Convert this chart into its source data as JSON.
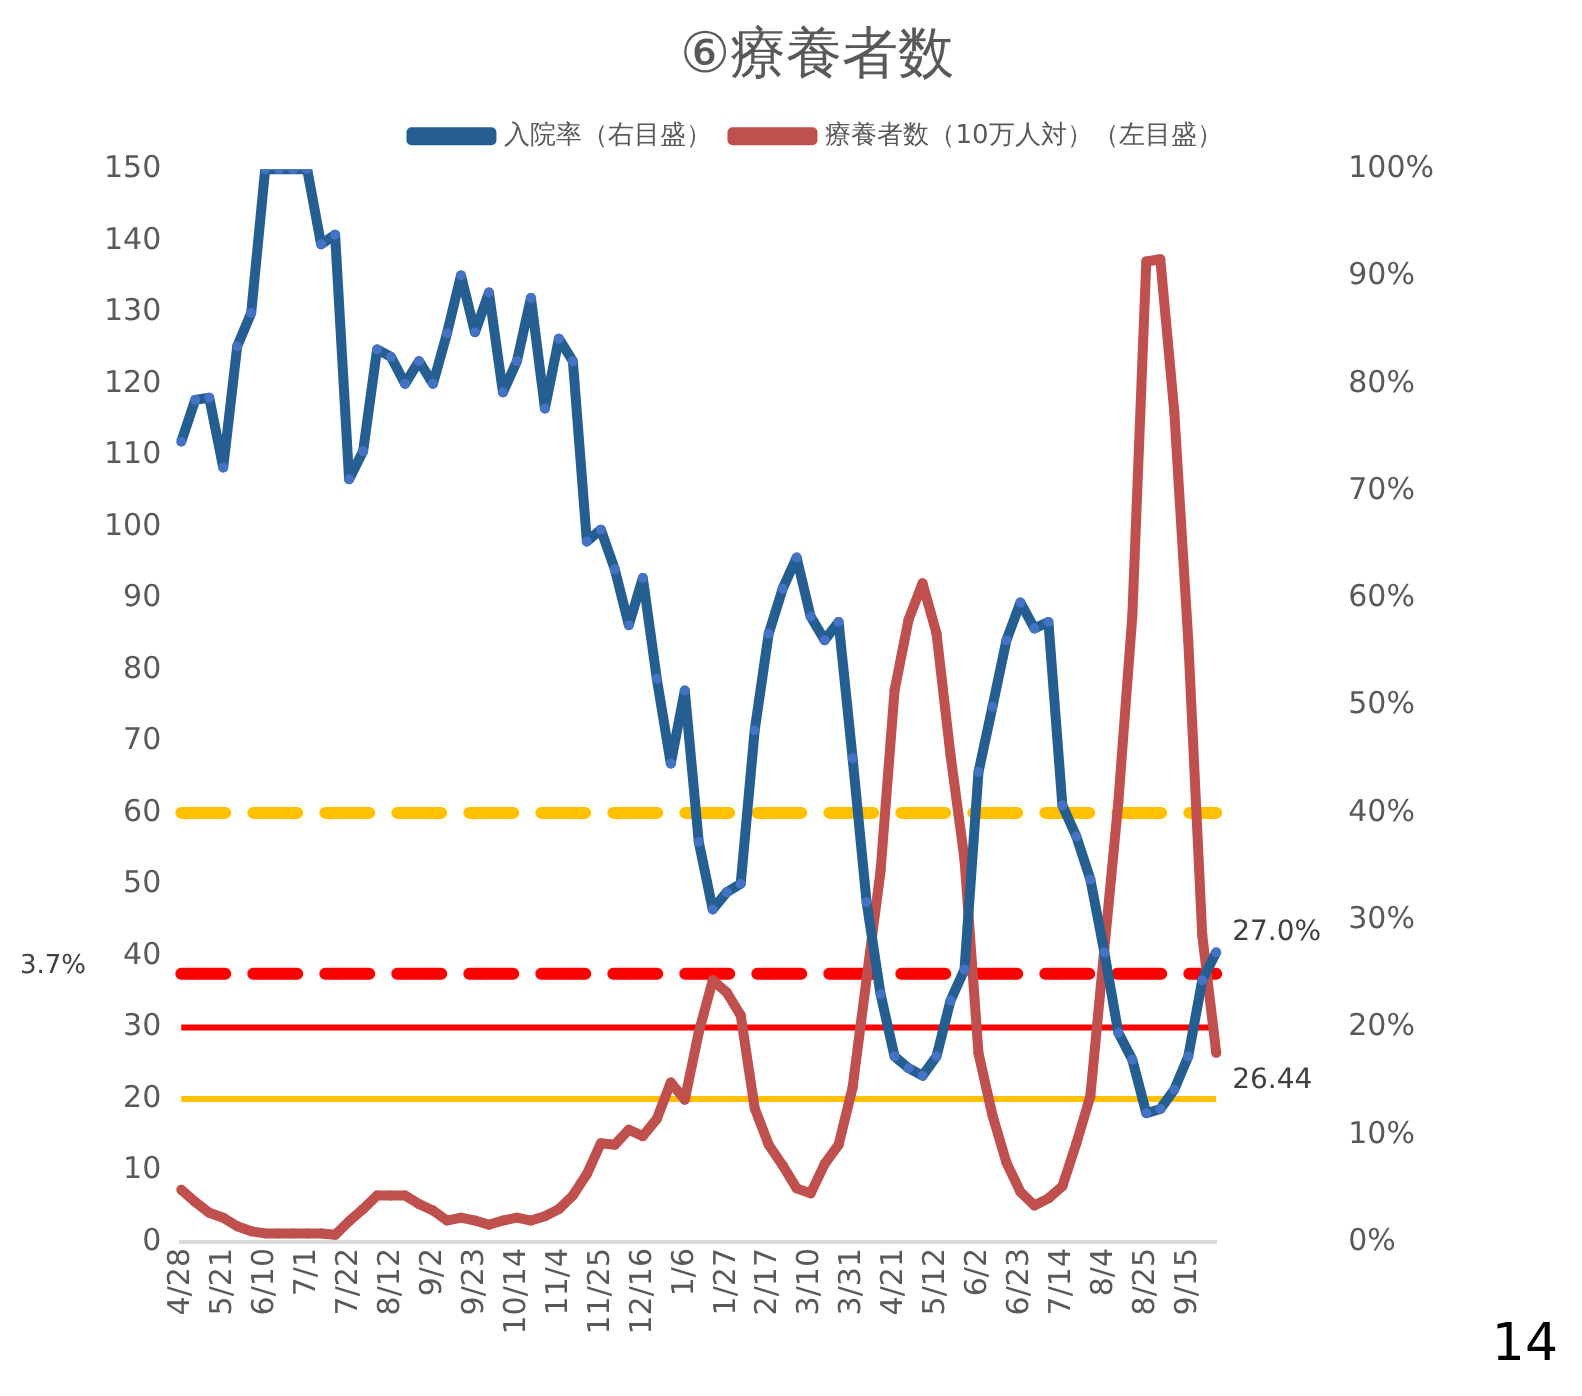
{
  "chart_data": {
    "type": "line",
    "title": "⑥療養者数",
    "categories": [
      "4/28",
      null,
      null,
      "5/21",
      null,
      null,
      "6/10",
      null,
      null,
      "7/1",
      null,
      null,
      "7/22",
      null,
      null,
      "8/12",
      null,
      null,
      "9/2",
      null,
      null,
      "9/23",
      null,
      null,
      "10/14",
      null,
      null,
      "11/4",
      null,
      null,
      "11/25",
      null,
      null,
      "12/16",
      null,
      null,
      "1/6",
      null,
      null,
      "1/27",
      null,
      null,
      "2/17",
      null,
      null,
      "3/10",
      null,
      null,
      "3/31",
      null,
      null,
      "4/21",
      null,
      null,
      "5/12",
      null,
      null,
      "6/2",
      null,
      null,
      "6/23",
      null,
      null,
      "7/14",
      null,
      null,
      "8/4",
      null,
      null,
      "8/25",
      null,
      null,
      "9/15",
      null,
      null
    ],
    "series": [
      {
        "name": "入院率（右目盛）",
        "color": "#255e91",
        "axis": "y2",
        "values": [
          74.6,
          78.5,
          78.7,
          72.2,
          83.5,
          86.6,
          100,
          100,
          100,
          100,
          93.0,
          93.9,
          71.1,
          73.7,
          83.2,
          82.5,
          80.0,
          82.1,
          80.0,
          84.7,
          90.1,
          84.8,
          88.5,
          79.2,
          82.1,
          88.0,
          77.7,
          84.2,
          82.1,
          65.3,
          66.4,
          62.7,
          57.5,
          61.9,
          52.5,
          44.6,
          51.4,
          37.3,
          31.0,
          32.6,
          33.4,
          47.7,
          56.7,
          60.9,
          63.8,
          58.3,
          56.1,
          57.8,
          45.1,
          31.7,
          23.1,
          17.3,
          16.2,
          15.5,
          17.3,
          22.5,
          25.4,
          43.8,
          49.9,
          56.1,
          59.6,
          57.2,
          57.8,
          40.7,
          37.8,
          33.8,
          27.0,
          19.5,
          17.0,
          12.0,
          12.4,
          14.2,
          17.3,
          24.4,
          27.0
        ],
        "value_labels": [
          null,
          null,
          null,
          null,
          null,
          null,
          null,
          null,
          null,
          null,
          null,
          null,
          null,
          null,
          null,
          null,
          null,
          null,
          null,
          null,
          null,
          null,
          null,
          null,
          null,
          null,
          null,
          null,
          null,
          null,
          null,
          null,
          null,
          null,
          null,
          null,
          null,
          null,
          null,
          null,
          null,
          null,
          null,
          null,
          null,
          null,
          null,
          null,
          null,
          null,
          null,
          null,
          null,
          null,
          null,
          null,
          null,
          null,
          null,
          null,
          null,
          null,
          null,
          null,
          null,
          null,
          null,
          null,
          null,
          null,
          null,
          null,
          null,
          null,
          "27.0%"
        ]
      },
      {
        "name": "療養者数（10万人対）（左目盛）",
        "color": "#c0504d",
        "values": [
          7.3,
          5.6,
          4.1,
          3.4,
          2.2,
          1.5,
          1.2,
          1.2,
          1.2,
          1.2,
          1.2,
          1.0,
          2.9,
          4.6,
          6.5,
          6.5,
          6.5,
          5.3,
          4.4,
          3.0,
          3.4,
          3.0,
          2.4,
          3.0,
          3.4,
          3.0,
          3.6,
          4.6,
          6.5,
          9.5,
          13.8,
          13.6,
          15.7,
          14.8,
          17.2,
          22.3,
          19.9,
          29.3,
          36.6,
          34.9,
          31.7,
          18.7,
          13.6,
          10.7,
          7.5,
          6.8,
          10.9,
          13.6,
          21.6,
          36.8,
          51.9,
          77.1,
          87.0,
          92.1,
          85.1,
          68.1,
          53.5,
          26.4,
          17.7,
          11.1,
          7.0,
          5.1,
          6.1,
          7.8,
          13.8,
          20.4,
          41.0,
          61.5,
          87.5,
          137.1,
          137.4,
          116.1,
          84.1,
          42.9,
          26.44
        ],
        "value_labels": [
          null,
          null,
          null,
          null,
          null,
          null,
          null,
          null,
          null,
          null,
          null,
          null,
          null,
          null,
          null,
          null,
          null,
          null,
          null,
          null,
          null,
          null,
          null,
          null,
          null,
          null,
          null,
          null,
          null,
          null,
          null,
          null,
          null,
          null,
          null,
          null,
          null,
          null,
          null,
          null,
          null,
          null,
          null,
          null,
          null,
          null,
          null,
          null,
          null,
          null,
          null,
          null,
          null,
          null,
          null,
          null,
          null,
          null,
          null,
          null,
          null,
          null,
          null,
          null,
          null,
          null,
          null,
          null,
          null,
          null,
          null,
          null,
          null,
          null,
          "26.44"
        ]
      }
    ],
    "ylim": [
      0,
      150
    ],
    "yticks": [
      0,
      10,
      20,
      30,
      40,
      50,
      60,
      70,
      80,
      90,
      100,
      110,
      120,
      130,
      140,
      150
    ],
    "y2lim": [
      0,
      100
    ],
    "y2ticks": [
      {
        "value": 0,
        "label": "0%"
      },
      {
        "value": 10,
        "label": "10%"
      },
      {
        "value": 20,
        "label": "20%"
      },
      {
        "value": 30,
        "label": "30%"
      },
      {
        "value": 40,
        "label": "40%"
      },
      {
        "value": 50,
        "label": "50%"
      },
      {
        "value": 60,
        "label": "60%"
      },
      {
        "value": 70,
        "label": "70%"
      },
      {
        "value": 80,
        "label": "80%"
      },
      {
        "value": 90,
        "label": "90%"
      },
      {
        "value": 100,
        "label": "100%"
      }
    ],
    "ref_lines": [
      {
        "axis": "y2",
        "value": 40,
        "color": "#ffc000",
        "line_style": "dashed"
      },
      {
        "axis": "y2",
        "value": 25,
        "color": "#ff0000",
        "line_style": "dashed"
      },
      {
        "axis": "y",
        "value": 30,
        "color": "#ff0000",
        "line_style": "solid"
      },
      {
        "axis": "y",
        "value": 20,
        "color": "#ffc000",
        "line_style": "solid"
      }
    ],
    "annotations": [
      "3.7%",
      "14"
    ],
    "marker": "circle",
    "line_style": "solid",
    "grid": false,
    "legend": "top"
  }
}
